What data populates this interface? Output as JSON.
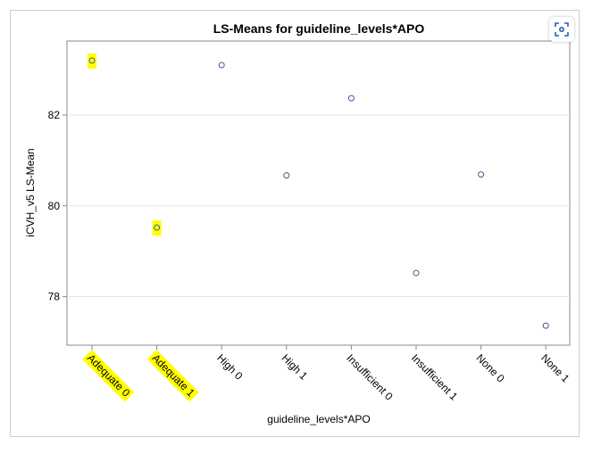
{
  "chart_data": {
    "type": "scatter",
    "title": "LS-Means for guideline_levels*APO",
    "xlabel": "guideline_levels*APO",
    "ylabel": "iCVH_v5 LS-Mean",
    "categories": [
      "Adequate 0",
      "Adequate 1",
      "High 0",
      "High 1",
      "Insufficient 0",
      "Insufficient 1",
      "None 0",
      "None 1"
    ],
    "values": [
      83.2,
      79.52,
      83.1,
      80.67,
      82.37,
      78.52,
      80.69,
      77.36
    ],
    "highlighted": [
      true,
      true,
      false,
      false,
      false,
      false,
      false,
      false
    ],
    "yticks": [
      78,
      80,
      82
    ],
    "ylim": [
      76.93,
      83.63
    ],
    "grid": "horizontal",
    "colors": {
      "marker": "#3d5a9c",
      "highlight": "#ffff00",
      "grid": "#e4e4e4",
      "axis": "#888888"
    }
  },
  "toolbar": {
    "zoom_icon": "focus-zoom-icon"
  }
}
